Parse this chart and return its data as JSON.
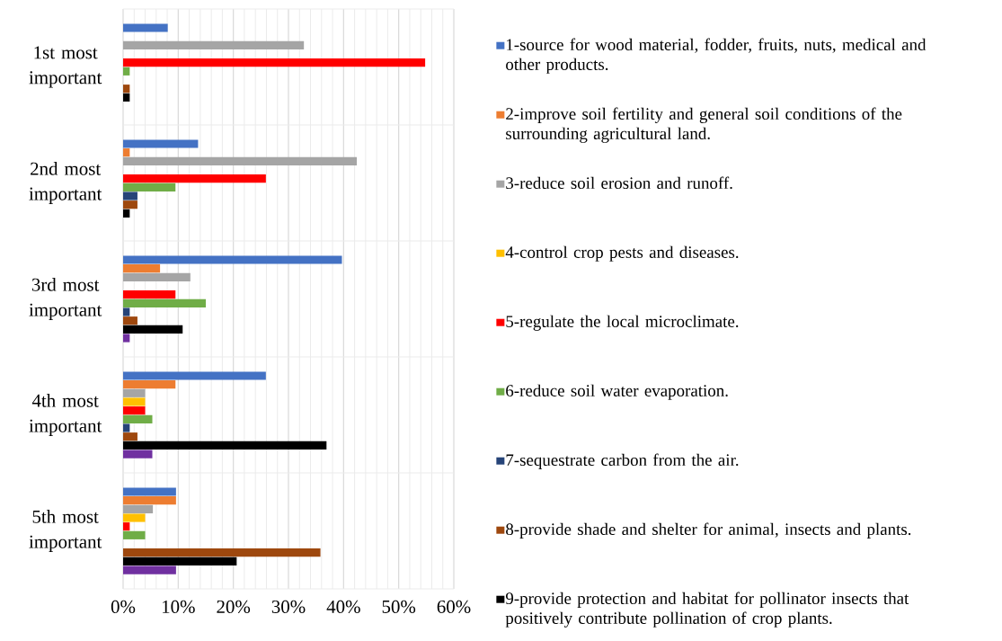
{
  "chart_data": {
    "type": "bar",
    "orientation": "horizontal",
    "categories": [
      "1st most important",
      "2nd most important",
      "3rd most important",
      "4th most important",
      "5th most important"
    ],
    "series": [
      {
        "name": "1-source for wood material, fodder, fruits, nuts, medical and other products.",
        "color": "#4472c4",
        "values": [
          8.1,
          13.6,
          39.7,
          25.9,
          9.6
        ]
      },
      {
        "name": "2-improve soil fertility and general soil conditions of the surrounding agricultural land.",
        "color": "#ed7d31",
        "values": [
          0,
          1.2,
          6.7,
          9.5,
          9.6
        ]
      },
      {
        "name": "3-reduce soil erosion and runoff.",
        "color": "#a5a5a5",
        "values": [
          32.8,
          42.4,
          12.2,
          4.0,
          5.4
        ]
      },
      {
        "name": "4-control crop pests and diseases.",
        "color": "#ffc000",
        "values": [
          0,
          0,
          0,
          4.0,
          4.0
        ]
      },
      {
        "name": "5-regulate the local microclimate.",
        "color": "#ff0000",
        "values": [
          54.8,
          25.9,
          9.5,
          4.0,
          1.2
        ]
      },
      {
        "name": "6-reduce soil water evaporation.",
        "color": "#70ad47",
        "values": [
          1.2,
          9.5,
          15.0,
          5.3,
          4.0
        ]
      },
      {
        "name": "7-sequestrate carbon from the air.",
        "color": "#264478",
        "values": [
          0,
          2.6,
          1.2,
          1.2,
          0
        ]
      },
      {
        "name": "8-provide shade and shelter for animal, insects and plants.",
        "color": "#9e480e",
        "values": [
          1.2,
          2.6,
          2.6,
          2.6,
          35.8
        ]
      },
      {
        "name": "9-provide protection and habitat for pollinator insects that positively contribute pollination of crop plants.",
        "color": "#000000",
        "values": [
          1.2,
          1.2,
          10.8,
          36.9,
          20.6
        ]
      },
      {
        "color": "#7030a0",
        "values": [
          0,
          0,
          1.2,
          5.3,
          9.6
        ]
      }
    ],
    "xlim": [
      0,
      60
    ],
    "xticks": [
      {
        "value": 0,
        "label": "0%"
      },
      {
        "value": 10,
        "label": "10%"
      },
      {
        "value": 20,
        "label": "20%"
      },
      {
        "value": 30,
        "label": "30%"
      },
      {
        "value": 40,
        "label": "40%"
      },
      {
        "value": 50,
        "label": "50%"
      },
      {
        "value": 60,
        "label": "60%"
      }
    ],
    "grid": true,
    "legend": "right"
  }
}
